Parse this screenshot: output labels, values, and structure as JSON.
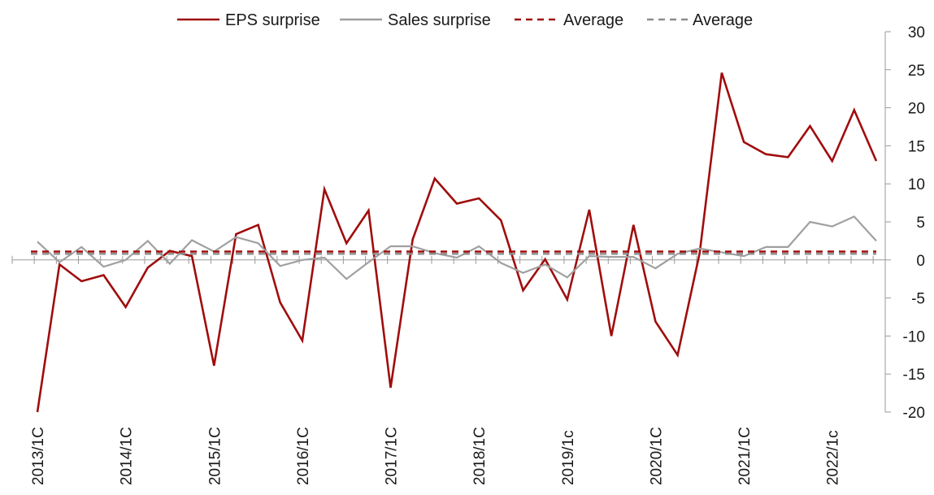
{
  "chart_data": {
    "type": "line",
    "title": "",
    "xlabel": "",
    "ylabel": "",
    "ylim": [
      -20,
      30
    ],
    "yticks": [
      30,
      25,
      20,
      15,
      10,
      5,
      0,
      -5,
      -10,
      -15,
      -20
    ],
    "y_axis_side": "right",
    "legend_position": "top",
    "grid": false,
    "x_tick_labels": [
      "2013/1C",
      "2014/1C",
      "2015/1C",
      "2016/1C",
      "2017/1C",
      "2018/1C",
      "2019/1c",
      "2020/1C",
      "2021/1C",
      "2022/1c"
    ],
    "series": [
      {
        "name": "EPS surprise",
        "color": "#a00d0d",
        "style": "solid",
        "values": [
          -20,
          -0.6,
          -2.8,
          -2.0,
          -6.2,
          -1.0,
          1.2,
          0.5,
          -13.9,
          3.4,
          4.6,
          -5.6,
          -10.6,
          9.3,
          2.2,
          6.5,
          -16.8,
          2.7,
          10.7,
          7.4,
          8.1,
          5.2,
          -4.0,
          0.1,
          -5.2,
          6.6,
          -10.0,
          4.6,
          -8.1,
          -12.5,
          0.9,
          24.6,
          15.5,
          13.9,
          13.5,
          17.6,
          13.0,
          19.7,
          13.0
        ]
      },
      {
        "name": "Sales surprise",
        "color": "#a0a0a0",
        "style": "solid",
        "values": [
          2.4,
          -0.3,
          1.7,
          -0.9,
          0.0,
          2.5,
          -0.5,
          2.6,
          1.1,
          3.0,
          2.2,
          -0.8,
          0.0,
          0.3,
          -2.5,
          -0.3,
          1.8,
          1.8,
          0.9,
          0.3,
          1.8,
          -0.4,
          -1.7,
          -0.6,
          -2.3,
          0.5,
          0.4,
          0.4,
          -1.1,
          0.8,
          1.5,
          1.0,
          0.5,
          1.7,
          1.7,
          5.0,
          4.4,
          5.7,
          2.5
        ]
      },
      {
        "name": "Average",
        "color": "#a00d0d",
        "style": "dashed",
        "constant": 1.1
      },
      {
        "name": "Average",
        "color": "#8c8c8c",
        "style": "dashed",
        "constant": 0.8
      }
    ]
  }
}
